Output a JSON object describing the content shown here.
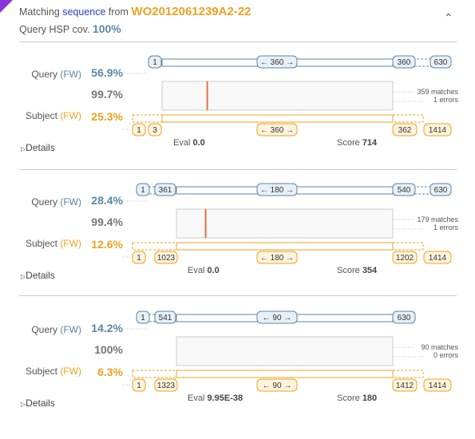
{
  "header": {
    "prefix": "Matching",
    "sequence_word": "sequence",
    "from_word": "from",
    "accession": "WO2012061239A2-22",
    "cov_label": "Query HSP cov.",
    "cov_value": "100%"
  },
  "labels": {
    "query": "Query",
    "subject": "Subject",
    "fw": "(FW)",
    "details": "Details",
    "eval": "Eval",
    "score": "Score"
  },
  "colors": {
    "query": "#5a87a4",
    "subject": "#f0a020",
    "mismatch": "#e8703a",
    "accent": "#8a34d8"
  },
  "hits": [
    {
      "query_pct": "56.9%",
      "identity": "99.7%",
      "subject_pct": "25.3%",
      "matches": "359 matches",
      "errors": "1 errors",
      "eval": "0.0",
      "score": "714",
      "q_start": "1",
      "q_end": "360",
      "q_total": "630",
      "q_len": "← 360 →",
      "s_start": "3",
      "s_end": "362",
      "s_total": "1414",
      "s_len": "← 360 →",
      "s_first": "1",
      "q_frac": [
        0.0,
        0.571
      ],
      "mismatch_pos": 0.196
    },
    {
      "query_pct": "28.4%",
      "identity": "99.4%",
      "subject_pct": "12.6%",
      "matches": "179 matches",
      "errors": "1 errors",
      "eval": "0.0",
      "score": "354",
      "q_start": "361",
      "q_end": "540",
      "q_total": "630",
      "q_len": "← 180 →",
      "s_start": "1023",
      "s_end": "1202",
      "s_total": "1414",
      "s_len": "← 180 →",
      "s_first": "1",
      "q_frac": [
        0.571,
        0.857
      ],
      "mismatch_pos": 0.135
    },
    {
      "query_pct": "14.2%",
      "identity": "100%",
      "subject_pct": "6.3%",
      "matches": "90 matches",
      "errors": "0 errors",
      "eval": "9.95E-38",
      "score": "180",
      "q_start": "541",
      "q_end": "630",
      "q_total": "",
      "q_len": "← 90 →",
      "s_start": "1323",
      "s_end": "1412",
      "s_total": "1414",
      "s_len": "← 90 →",
      "s_first": "1",
      "q_frac": [
        0.857,
        1.0
      ],
      "mismatch_pos": null
    }
  ]
}
